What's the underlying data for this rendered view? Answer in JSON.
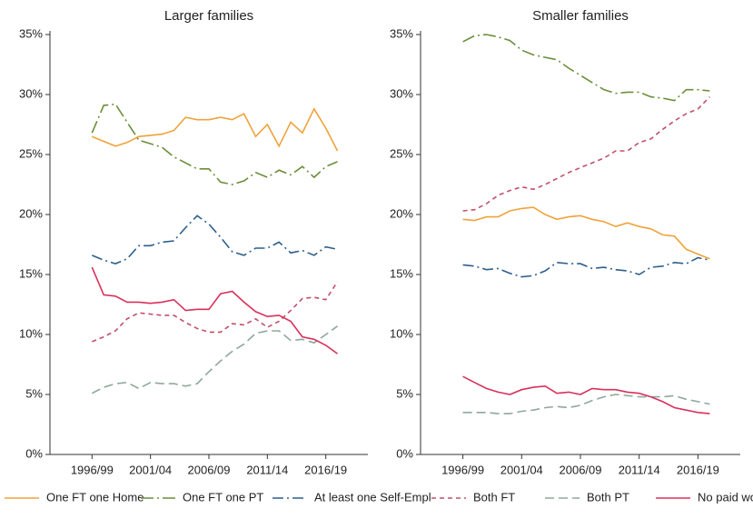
{
  "chart_data": [
    {
      "type": "line",
      "title": "Larger families",
      "categories": [
        "1996/99",
        null,
        null,
        null,
        null,
        "2001/04",
        null,
        null,
        null,
        null,
        "2006/09",
        null,
        null,
        null,
        null,
        "2011/14",
        null,
        null,
        null,
        null,
        "2016/19",
        null
      ],
      "ylim": [
        0,
        35
      ],
      "yticks": [
        {
          "value": 0,
          "label": "0%"
        },
        {
          "value": 5,
          "label": "5%"
        },
        {
          "value": 10,
          "label": "10%"
        },
        {
          "value": 15,
          "label": "15%"
        },
        {
          "value": 20,
          "label": "20%"
        },
        {
          "value": 25,
          "label": "25%"
        },
        {
          "value": 30,
          "label": "30%"
        },
        {
          "value": 35,
          "label": "35%"
        }
      ],
      "series": [
        {
          "name": "One FT one Home",
          "color": "#f0a23a",
          "values": [
            26.5,
            26.1,
            25.7,
            26.0,
            26.5,
            26.6,
            26.7,
            27.0,
            28.1,
            27.9,
            27.9,
            28.1,
            27.9,
            28.4,
            26.5,
            27.5,
            25.7,
            27.7,
            26.8,
            28.8,
            27.2,
            25.3
          ]
        },
        {
          "name": "One FT one PT",
          "color": "#6b8e3a",
          "values": [
            26.8,
            29.1,
            29.2,
            27.7,
            26.2,
            25.9,
            25.6,
            24.8,
            24.3,
            23.8,
            23.8,
            22.7,
            22.5,
            22.8,
            23.5,
            23.1,
            23.7,
            23.3,
            24.0,
            23.1,
            24.0,
            24.4
          ]
        },
        {
          "name": "At least one Self-Empl",
          "color": "#2e5f8a",
          "values": [
            16.6,
            16.2,
            15.9,
            16.3,
            17.4,
            17.4,
            17.7,
            17.8,
            18.9,
            19.9,
            19.2,
            18.1,
            16.9,
            16.6,
            17.2,
            17.2,
            17.7,
            16.8,
            17.0,
            16.6,
            17.3,
            17.1
          ]
        },
        {
          "name": "Both FT",
          "color": "#c0506a",
          "values": [
            9.4,
            9.8,
            10.3,
            11.3,
            11.8,
            11.7,
            11.6,
            11.6,
            11.0,
            10.5,
            10.2,
            10.2,
            10.9,
            10.8,
            11.3,
            10.6,
            11.1,
            12.0,
            13.0,
            13.1,
            12.9,
            14.4
          ]
        },
        {
          "name": "Both PT",
          "color": "#8fa89a",
          "values": [
            5.1,
            5.6,
            5.9,
            6.0,
            5.5,
            6.0,
            5.9,
            5.9,
            5.7,
            5.9,
            6.9,
            7.8,
            8.6,
            9.2,
            10.1,
            10.3,
            10.3,
            9.5,
            9.6,
            9.3,
            10.0,
            10.7
          ]
        },
        {
          "name": "No paid work",
          "color": "#d8315b",
          "values": [
            15.6,
            13.3,
            13.2,
            12.7,
            12.7,
            12.6,
            12.7,
            12.9,
            12.0,
            12.1,
            12.1,
            13.4,
            13.6,
            12.7,
            11.9,
            11.5,
            11.6,
            11.1,
            9.8,
            9.6,
            9.1,
            8.4
          ]
        }
      ]
    },
    {
      "type": "line",
      "title": "Smaller families",
      "categories": [
        "1996/99",
        null,
        null,
        null,
        null,
        "2001/04",
        null,
        null,
        null,
        null,
        "2006/09",
        null,
        null,
        null,
        null,
        "2011/14",
        null,
        null,
        null,
        null,
        "2016/19",
        null
      ],
      "ylim": [
        0,
        35
      ],
      "yticks": [
        {
          "value": 0,
          "label": "0%"
        },
        {
          "value": 5,
          "label": "5%"
        },
        {
          "value": 10,
          "label": "10%"
        },
        {
          "value": 15,
          "label": "15%"
        },
        {
          "value": 20,
          "label": "20%"
        },
        {
          "value": 25,
          "label": "25%"
        },
        {
          "value": 30,
          "label": "30%"
        },
        {
          "value": 35,
          "label": "35%"
        }
      ],
      "series": [
        {
          "color": "#f0a23a",
          "values": [
            19.6,
            19.5,
            19.8,
            19.8,
            20.3,
            20.5,
            20.6,
            20.0,
            19.6,
            19.8,
            19.9,
            19.6,
            19.4,
            19.0,
            19.3,
            19.0,
            18.8,
            18.3,
            18.2,
            17.1,
            16.7,
            16.3
          ]
        },
        {
          "color": "#6b8e3a",
          "values": [
            34.4,
            34.9,
            35.0,
            34.8,
            34.5,
            33.7,
            33.3,
            33.1,
            32.9,
            32.2,
            31.6,
            31.0,
            30.4,
            30.1,
            30.2,
            30.2,
            29.8,
            29.7,
            29.5,
            30.4,
            30.4,
            30.3
          ]
        },
        {
          "color": "#2e5f8a",
          "values": [
            15.8,
            15.7,
            15.4,
            15.5,
            15.1,
            14.8,
            14.9,
            15.3,
            16.0,
            15.9,
            15.9,
            15.5,
            15.6,
            15.4,
            15.3,
            15.0,
            15.6,
            15.7,
            16.0,
            15.9,
            16.4,
            16.2
          ]
        },
        {
          "color": "#c0506a",
          "values": [
            20.3,
            20.4,
            20.9,
            21.6,
            22.0,
            22.3,
            22.1,
            22.5,
            23.0,
            23.5,
            23.9,
            24.3,
            24.7,
            25.3,
            25.3,
            26.0,
            26.3,
            27.1,
            27.8,
            28.4,
            28.8,
            29.8
          ]
        },
        {
          "color": "#8fa89a",
          "values": [
            3.5,
            3.5,
            3.5,
            3.4,
            3.4,
            3.6,
            3.7,
            3.9,
            4.0,
            3.9,
            4.1,
            4.5,
            4.8,
            5.0,
            4.9,
            4.8,
            4.8,
            4.8,
            4.9,
            4.6,
            4.4,
            4.2
          ]
        },
        {
          "color": "#d8315b",
          "values": [
            6.5,
            6.0,
            5.5,
            5.2,
            5.0,
            5.4,
            5.6,
            5.7,
            5.1,
            5.2,
            5.0,
            5.5,
            5.4,
            5.4,
            5.2,
            5.1,
            4.8,
            4.4,
            3.9,
            3.7,
            3.5,
            3.4
          ]
        }
      ]
    }
  ]
}
